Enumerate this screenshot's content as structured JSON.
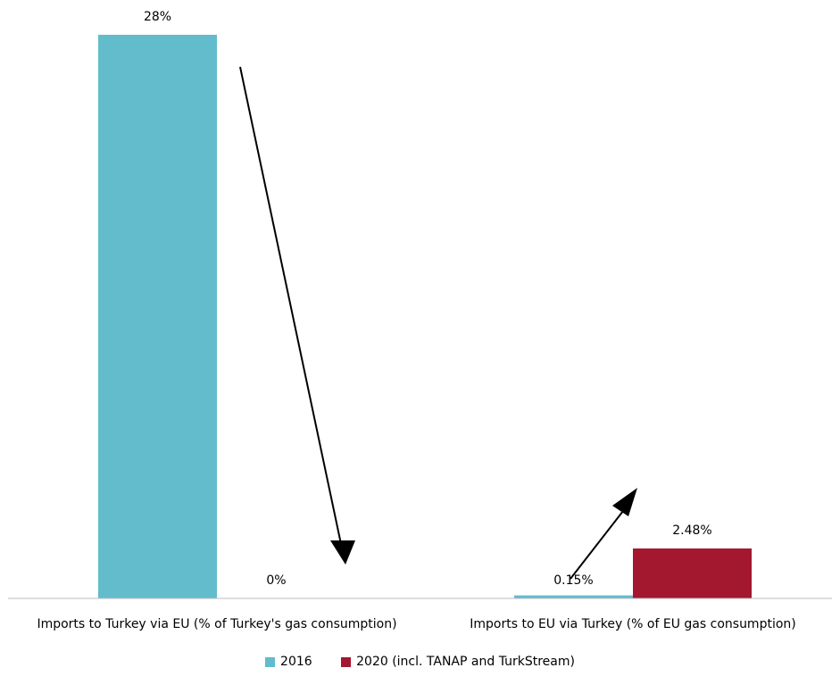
{
  "chart_data": {
    "type": "bar",
    "categories": [
      "Imports to Turkey via EU (% of Turkey's gas consumption)",
      "Imports to EU via Turkey (% of EU gas consumption)"
    ],
    "series": [
      {
        "name": "2016",
        "values": [
          28,
          0.15
        ],
        "labels": [
          "28%",
          "0.15%"
        ],
        "color": "#62bccc"
      },
      {
        "name": "2020 (incl. TANAP and TurkStream)",
        "values": [
          0,
          2.48
        ],
        "labels": [
          "0%",
          "2.48%"
        ],
        "color": "#a3172f"
      }
    ],
    "ylim": [
      0,
      28
    ],
    "grid": false,
    "legend_position": "bottom",
    "annotations": [
      "arrow pointing down from first 2016 bar toward 2020 value",
      "arrow pointing up in second category"
    ]
  }
}
